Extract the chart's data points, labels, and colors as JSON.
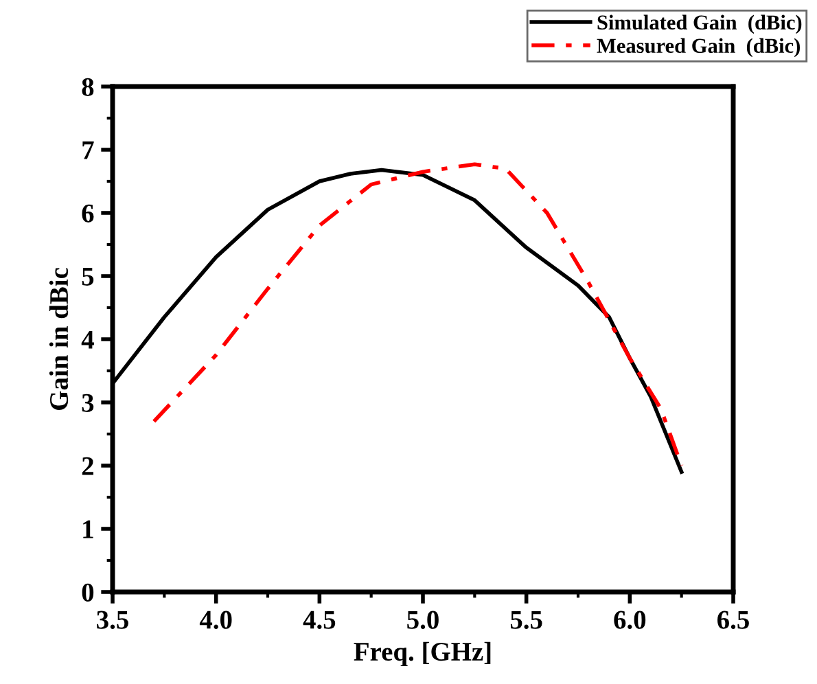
{
  "chart_data": {
    "type": "line",
    "xlabel": "Freq. [GHz]",
    "ylabel": "Gain in dBic",
    "xlim": [
      3.5,
      6.5
    ],
    "ylim": [
      0,
      8
    ],
    "xticks": [
      3.5,
      {
        "value": 4,
        "label": "4.0"
      },
      4.5,
      {
        "value": 5,
        "label": "5.0"
      },
      5.5,
      {
        "value": 6,
        "label": "6.0"
      },
      6.5
    ],
    "yticks": [
      0,
      1,
      2,
      3,
      4,
      5,
      6,
      7,
      8
    ],
    "grid": false,
    "legend": "top right",
    "marker": "none",
    "series": [
      {
        "name": "Simulated Gain  (dBic)",
        "color": "#000000",
        "line_style": "solid",
        "x": [
          3.5,
          3.75,
          4.0,
          4.25,
          4.5,
          4.65,
          4.8,
          5.0,
          5.25,
          5.5,
          5.75,
          5.9,
          6.0,
          6.1,
          6.25
        ],
        "values": [
          3.3,
          4.35,
          5.3,
          6.05,
          6.5,
          6.62,
          6.68,
          6.6,
          6.2,
          5.45,
          4.85,
          4.35,
          3.7,
          3.1,
          1.9
        ]
      },
      {
        "name": "Measured Gain  (dBic)",
        "color": "#ff0000",
        "line_style": "dashdot",
        "x": [
          3.7,
          4.0,
          4.25,
          4.5,
          4.75,
          5.0,
          5.25,
          5.4,
          5.6,
          5.8,
          6.0,
          6.15,
          6.25
        ],
        "values": [
          2.7,
          3.75,
          4.8,
          5.8,
          6.45,
          6.65,
          6.77,
          6.7,
          6.0,
          4.9,
          3.7,
          2.9,
          2.0
        ]
      }
    ]
  }
}
